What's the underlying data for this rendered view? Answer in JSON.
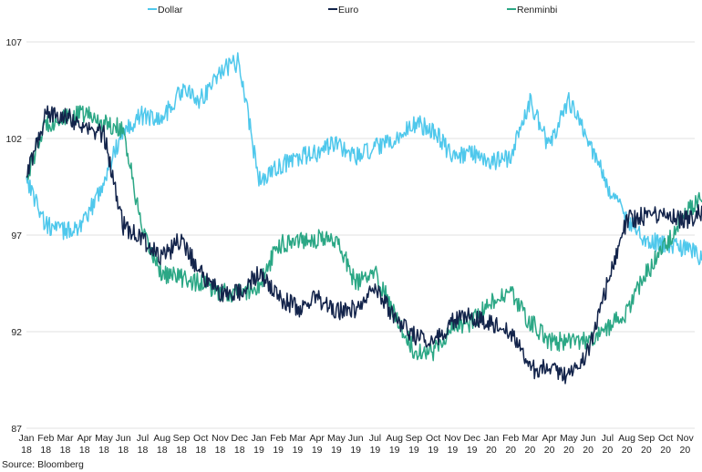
{
  "source": "Source: Bloomberg",
  "chart_data": {
    "type": "line",
    "title": "",
    "xlabel": "",
    "ylabel": "",
    "ylim": [
      87,
      107
    ],
    "yticks": [
      87,
      92,
      97,
      102,
      107
    ],
    "grid": "horizontal",
    "legend_position": "top",
    "x_ticks": [
      {
        "month": "Jan",
        "year": "18"
      },
      {
        "month": "Feb",
        "year": "18"
      },
      {
        "month": "Mar",
        "year": "18"
      },
      {
        "month": "Apr",
        "year": "18"
      },
      {
        "month": "May",
        "year": "18"
      },
      {
        "month": "Jun",
        "year": "18"
      },
      {
        "month": "Jul",
        "year": "18"
      },
      {
        "month": "Aug",
        "year": "18"
      },
      {
        "month": "Sep",
        "year": "18"
      },
      {
        "month": "Oct",
        "year": "18"
      },
      {
        "month": "Nov",
        "year": "18"
      },
      {
        "month": "Dec",
        "year": "18"
      },
      {
        "month": "Jan",
        "year": "19"
      },
      {
        "month": "Feb",
        "year": "19"
      },
      {
        "month": "Mar",
        "year": "19"
      },
      {
        "month": "Apr",
        "year": "19"
      },
      {
        "month": "May",
        "year": "19"
      },
      {
        "month": "Jun",
        "year": "19"
      },
      {
        "month": "Jul",
        "year": "19"
      },
      {
        "month": "Aug",
        "year": "19"
      },
      {
        "month": "Sep",
        "year": "19"
      },
      {
        "month": "Oct",
        "year": "19"
      },
      {
        "month": "Nov",
        "year": "19"
      },
      {
        "month": "Dec",
        "year": "19"
      },
      {
        "month": "Jan",
        "year": "20"
      },
      {
        "month": "Feb",
        "year": "20"
      },
      {
        "month": "Mar",
        "year": "20"
      },
      {
        "month": "Apr",
        "year": "20"
      },
      {
        "month": "May",
        "year": "20"
      },
      {
        "month": "Jun",
        "year": "20"
      },
      {
        "month": "Jul",
        "year": "20"
      },
      {
        "month": "Aug",
        "year": "20"
      },
      {
        "month": "Sep",
        "year": "20"
      },
      {
        "month": "Oct",
        "year": "20"
      },
      {
        "month": "Nov",
        "year": "20"
      }
    ],
    "x": [
      "2018-01",
      "2018-02",
      "2018-03",
      "2018-04",
      "2018-05",
      "2018-06",
      "2018-07",
      "2018-08",
      "2018-09",
      "2018-10",
      "2018-11",
      "2018-12",
      "2019-01",
      "2019-02",
      "2019-03",
      "2019-04",
      "2019-05",
      "2019-06",
      "2019-07",
      "2019-08",
      "2019-09",
      "2019-10",
      "2019-11",
      "2019-12",
      "2020-01",
      "2020-02",
      "2020-03",
      "2020-04",
      "2020-05",
      "2020-06",
      "2020-07",
      "2020-08",
      "2020-09",
      "2020-10",
      "2020-11",
      "2020-12"
    ],
    "series": [
      {
        "name": "Dollar",
        "color": "#4fc8ec",
        "values": [
          100,
          97.5,
          97.2,
          97.6,
          99.8,
          102.5,
          103.2,
          103.0,
          104.5,
          104.0,
          105.5,
          106.0,
          99.8,
          100.5,
          101.0,
          101.2,
          101.8,
          101.0,
          101.5,
          101.8,
          102.8,
          102.5,
          101.0,
          101.3,
          100.8,
          101.0,
          104.0,
          101.5,
          104.0,
          102.0,
          99.5,
          97.8,
          96.8,
          96.5,
          96.3,
          95.8
        ]
      },
      {
        "name": "Euro",
        "color": "#13244b",
        "values": [
          100,
          103.2,
          103.3,
          102.5,
          102.2,
          97.5,
          96.8,
          95.8,
          96.8,
          95.0,
          94.0,
          94.0,
          95.0,
          93.8,
          93.2,
          93.8,
          93.0,
          93.2,
          94.3,
          92.8,
          91.8,
          91.5,
          92.5,
          92.8,
          92.5,
          92.0,
          90.0,
          90.2,
          89.7,
          91.0,
          94.5,
          97.8,
          98.0,
          98.0,
          97.8,
          98.2
        ]
      },
      {
        "name": "Renminbi",
        "color": "#2ba785",
        "values": [
          100,
          102.8,
          103.0,
          103.3,
          102.8,
          102.5,
          97.0,
          95.0,
          94.8,
          94.5,
          94.0,
          94.0,
          94.3,
          96.5,
          96.8,
          96.8,
          96.8,
          94.5,
          95.0,
          93.0,
          91.0,
          91.0,
          92.2,
          92.5,
          93.5,
          94.0,
          92.5,
          91.5,
          91.5,
          91.5,
          92.2,
          93.0,
          95.0,
          96.5,
          98.2,
          99.0
        ]
      }
    ]
  }
}
